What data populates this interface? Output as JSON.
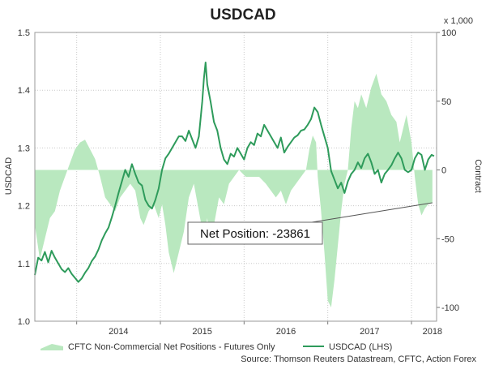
{
  "chart_data": {
    "type": "line",
    "title": "USDCAD",
    "left_axis": {
      "label": "USDCAD",
      "ylim": [
        1.0,
        1.5
      ],
      "ticks": [
        "1.0",
        "1.1",
        "1.2",
        "1.3",
        "1.4",
        "1.5"
      ]
    },
    "right_axis": {
      "label": "Contract",
      "unit_note": "x 1,000",
      "ylim": [
        -110,
        100
      ],
      "ticks": [
        "100",
        "50",
        "0",
        "-50",
        "-100"
      ]
    },
    "x_axis": {
      "range": [
        2013.5,
        2018.3
      ],
      "ticks": [
        "2014",
        "2015",
        "2016",
        "2017",
        "2018"
      ]
    },
    "grid": true,
    "colors": {
      "net_positions_fill": "#b9e8bf",
      "usdcad_line": "#2e9b5b",
      "grid": "#c9c9c9"
    },
    "series": [
      {
        "name": "CFTC Non-Commercial Net Positions - Futures Only",
        "axis": "right",
        "kind": "area",
        "points": [
          [
            2013.5,
            -40
          ],
          [
            2013.56,
            -65
          ],
          [
            2013.62,
            -50
          ],
          [
            2013.68,
            -35
          ],
          [
            2013.74,
            -30
          ],
          [
            2013.8,
            -15
          ],
          [
            2013.86,
            -5
          ],
          [
            2013.92,
            5
          ],
          [
            2013.98,
            15
          ],
          [
            2014.04,
            20
          ],
          [
            2014.1,
            22
          ],
          [
            2014.16,
            15
          ],
          [
            2014.22,
            8
          ],
          [
            2014.28,
            -5
          ],
          [
            2014.34,
            -20
          ],
          [
            2014.4,
            -25
          ],
          [
            2014.46,
            -30
          ],
          [
            2014.52,
            -20
          ],
          [
            2014.58,
            -15
          ],
          [
            2014.64,
            -10
          ],
          [
            2014.7,
            -15
          ],
          [
            2014.76,
            -35
          ],
          [
            2014.8,
            -40
          ],
          [
            2014.86,
            -30
          ],
          [
            2014.92,
            -25
          ],
          [
            2014.98,
            -35
          ],
          [
            2015.02,
            -25
          ],
          [
            2015.06,
            -40
          ],
          [
            2015.1,
            -60
          ],
          [
            2015.16,
            -75
          ],
          [
            2015.22,
            -60
          ],
          [
            2015.28,
            -45
          ],
          [
            2015.34,
            -20
          ],
          [
            2015.4,
            -10
          ],
          [
            2015.46,
            -30
          ],
          [
            2015.52,
            -50
          ],
          [
            2015.56,
            -35
          ],
          [
            2015.6,
            -55
          ],
          [
            2015.64,
            -40
          ],
          [
            2015.7,
            -20
          ],
          [
            2015.76,
            -25
          ],
          [
            2015.82,
            -10
          ],
          [
            2015.88,
            -5
          ],
          [
            2015.94,
            0
          ],
          [
            2016.02,
            -5
          ],
          [
            2016.1,
            -5
          ],
          [
            2016.18,
            -5
          ],
          [
            2016.26,
            -10
          ],
          [
            2016.32,
            -15
          ],
          [
            2016.38,
            -20
          ],
          [
            2016.44,
            -15
          ],
          [
            2016.5,
            -25
          ],
          [
            2016.56,
            -15
          ],
          [
            2016.62,
            -10
          ],
          [
            2016.68,
            -5
          ],
          [
            2016.74,
            0
          ],
          [
            2016.78,
            15
          ],
          [
            2016.82,
            25
          ],
          [
            2016.86,
            20
          ],
          [
            2016.88,
            -5
          ],
          [
            2016.92,
            -30
          ],
          [
            2016.96,
            -60
          ],
          [
            2017.0,
            -95
          ],
          [
            2017.04,
            -100
          ],
          [
            2017.08,
            -80
          ],
          [
            2017.12,
            -55
          ],
          [
            2017.16,
            -30
          ],
          [
            2017.2,
            -10
          ],
          [
            2017.24,
            0
          ],
          [
            2017.28,
            30
          ],
          [
            2017.32,
            50
          ],
          [
            2017.36,
            45
          ],
          [
            2017.4,
            55
          ],
          [
            2017.46,
            45
          ],
          [
            2017.52,
            60
          ],
          [
            2017.58,
            70
          ],
          [
            2017.64,
            55
          ],
          [
            2017.7,
            50
          ],
          [
            2017.76,
            40
          ],
          [
            2017.82,
            35
          ],
          [
            2017.86,
            20
          ],
          [
            2017.9,
            30
          ],
          [
            2017.94,
            40
          ],
          [
            2018.0,
            20
          ],
          [
            2018.04,
            -5
          ],
          [
            2018.08,
            -25
          ],
          [
            2018.12,
            -33
          ],
          [
            2018.16,
            -28
          ],
          [
            2018.2,
            -25
          ],
          [
            2018.25,
            -24
          ]
        ]
      },
      {
        "name": "USDCAD (LHS)",
        "axis": "left",
        "kind": "line",
        "points": [
          [
            2013.5,
            1.08
          ],
          [
            2013.54,
            1.11
          ],
          [
            2013.58,
            1.105
          ],
          [
            2013.62,
            1.12
          ],
          [
            2013.66,
            1.102
          ],
          [
            2013.7,
            1.122
          ],
          [
            2013.74,
            1.11
          ],
          [
            2013.78,
            1.1
          ],
          [
            2013.82,
            1.09
          ],
          [
            2013.86,
            1.085
          ],
          [
            2013.9,
            1.092
          ],
          [
            2013.94,
            1.082
          ],
          [
            2013.98,
            1.075
          ],
          [
            2014.02,
            1.068
          ],
          [
            2014.06,
            1.074
          ],
          [
            2014.1,
            1.084
          ],
          [
            2014.14,
            1.092
          ],
          [
            2014.18,
            1.104
          ],
          [
            2014.22,
            1.112
          ],
          [
            2014.26,
            1.124
          ],
          [
            2014.3,
            1.14
          ],
          [
            2014.34,
            1.152
          ],
          [
            2014.38,
            1.162
          ],
          [
            2014.42,
            1.18
          ],
          [
            2014.46,
            1.2
          ],
          [
            2014.5,
            1.222
          ],
          [
            2014.54,
            1.242
          ],
          [
            2014.58,
            1.262
          ],
          [
            2014.62,
            1.25
          ],
          [
            2014.66,
            1.272
          ],
          [
            2014.7,
            1.255
          ],
          [
            2014.74,
            1.24
          ],
          [
            2014.78,
            1.235
          ],
          [
            2014.82,
            1.21
          ],
          [
            2014.86,
            1.2
          ],
          [
            2014.9,
            1.195
          ],
          [
            2014.94,
            1.21
          ],
          [
            2014.98,
            1.23
          ],
          [
            2015.02,
            1.262
          ],
          [
            2015.06,
            1.282
          ],
          [
            2015.1,
            1.29
          ],
          [
            2015.14,
            1.3
          ],
          [
            2015.18,
            1.31
          ],
          [
            2015.22,
            1.32
          ],
          [
            2015.26,
            1.32
          ],
          [
            2015.3,
            1.312
          ],
          [
            2015.34,
            1.33
          ],
          [
            2015.38,
            1.315
          ],
          [
            2015.42,
            1.3
          ],
          [
            2015.46,
            1.32
          ],
          [
            2015.5,
            1.38
          ],
          [
            2015.52,
            1.42
          ],
          [
            2015.54,
            1.448
          ],
          [
            2015.56,
            1.41
          ],
          [
            2015.6,
            1.38
          ],
          [
            2015.64,
            1.345
          ],
          [
            2015.68,
            1.33
          ],
          [
            2015.72,
            1.3
          ],
          [
            2015.76,
            1.28
          ],
          [
            2015.8,
            1.272
          ],
          [
            2015.84,
            1.29
          ],
          [
            2015.88,
            1.285
          ],
          [
            2015.92,
            1.3
          ],
          [
            2015.96,
            1.29
          ],
          [
            2016.0,
            1.28
          ],
          [
            2016.04,
            1.3
          ],
          [
            2016.08,
            1.31
          ],
          [
            2016.12,
            1.305
          ],
          [
            2016.16,
            1.325
          ],
          [
            2016.2,
            1.32
          ],
          [
            2016.24,
            1.34
          ],
          [
            2016.28,
            1.33
          ],
          [
            2016.32,
            1.32
          ],
          [
            2016.36,
            1.31
          ],
          [
            2016.4,
            1.3
          ],
          [
            2016.44,
            1.318
          ],
          [
            2016.48,
            1.292
          ],
          [
            2016.52,
            1.302
          ],
          [
            2016.56,
            1.31
          ],
          [
            2016.6,
            1.318
          ],
          [
            2016.64,
            1.322
          ],
          [
            2016.68,
            1.33
          ],
          [
            2016.72,
            1.332
          ],
          [
            2016.76,
            1.34
          ],
          [
            2016.8,
            1.35
          ],
          [
            2016.84,
            1.37
          ],
          [
            2016.88,
            1.362
          ],
          [
            2016.92,
            1.34
          ],
          [
            2016.96,
            1.32
          ],
          [
            2017.0,
            1.3
          ],
          [
            2017.04,
            1.26
          ],
          [
            2017.08,
            1.245
          ],
          [
            2017.12,
            1.23
          ],
          [
            2017.16,
            1.24
          ],
          [
            2017.2,
            1.222
          ],
          [
            2017.24,
            1.242
          ],
          [
            2017.28,
            1.255
          ],
          [
            2017.32,
            1.262
          ],
          [
            2017.36,
            1.275
          ],
          [
            2017.4,
            1.265
          ],
          [
            2017.44,
            1.282
          ],
          [
            2017.48,
            1.29
          ],
          [
            2017.52,
            1.275
          ],
          [
            2017.56,
            1.255
          ],
          [
            2017.6,
            1.262
          ],
          [
            2017.64,
            1.24
          ],
          [
            2017.68,
            1.255
          ],
          [
            2017.72,
            1.262
          ],
          [
            2017.76,
            1.27
          ],
          [
            2017.8,
            1.282
          ],
          [
            2017.84,
            1.292
          ],
          [
            2017.88,
            1.282
          ],
          [
            2017.92,
            1.262
          ],
          [
            2017.96,
            1.258
          ],
          [
            2018.0,
            1.262
          ],
          [
            2018.04,
            1.282
          ],
          [
            2018.08,
            1.292
          ],
          [
            2018.12,
            1.288
          ],
          [
            2018.16,
            1.262
          ],
          [
            2018.2,
            1.28
          ],
          [
            2018.24,
            1.288
          ],
          [
            2018.27,
            1.286
          ]
        ]
      }
    ],
    "annotation": {
      "text": "Net Position: -23861",
      "points_to": [
        2018.25,
        -23.861
      ]
    },
    "legend": {
      "placement": "bottom",
      "items": [
        {
          "label": "CFTC Non-Commercial Net Positions - Futures Only",
          "symbol": "area"
        },
        {
          "label": "USDCAD (LHS)",
          "symbol": "line"
        }
      ]
    },
    "source": "Source: Thomson Reuters Datastream, CFTC, Action Forex"
  }
}
